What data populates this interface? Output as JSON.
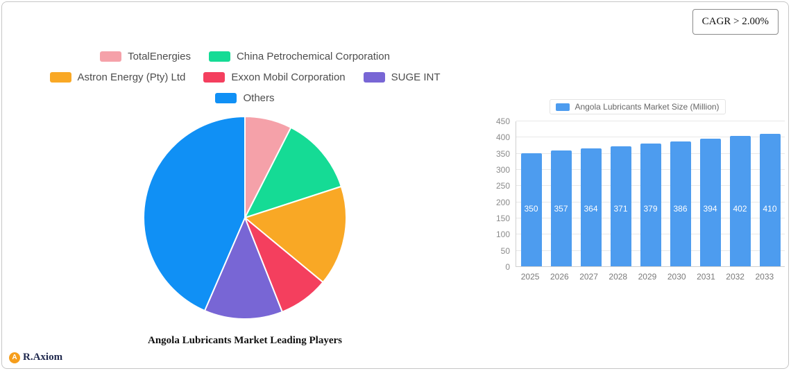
{
  "cagr_badge": "CAGR > 2.00%",
  "brand": {
    "name": "R.Axiom"
  },
  "chart_data": [
    {
      "type": "pie",
      "title": "Angola Lubricants Market Leading Players",
      "labels": [
        "TotalEnergies",
        "China Petrochemical Corporation",
        "Astron Energy (Pty) Ltd",
        "Exxon Mobil Corporation",
        "SUGE INT",
        "Others"
      ],
      "values": [
        7.5,
        12.5,
        16,
        8,
        12.5,
        43.5
      ],
      "colors": [
        "#F5A1A9",
        "#15DB95",
        "#F9A825",
        "#F43F5E",
        "#7866D5",
        "#1090F5"
      ],
      "legend_position": "top",
      "start_angle": "top",
      "direction": "clockwise"
    },
    {
      "type": "bar",
      "legend": "Angola Lubricants Market Size (Million)",
      "categories": [
        "2025",
        "2026",
        "2027",
        "2028",
        "2029",
        "2030",
        "2031",
        "2032",
        "2033"
      ],
      "values": [
        350,
        357,
        364,
        371,
        379,
        386,
        394,
        402,
        410
      ],
      "ylim": [
        0,
        450
      ],
      "ytick_step": 50,
      "bar_color": "#4D9CEF",
      "grid": true,
      "legend_position": "top"
    }
  ]
}
